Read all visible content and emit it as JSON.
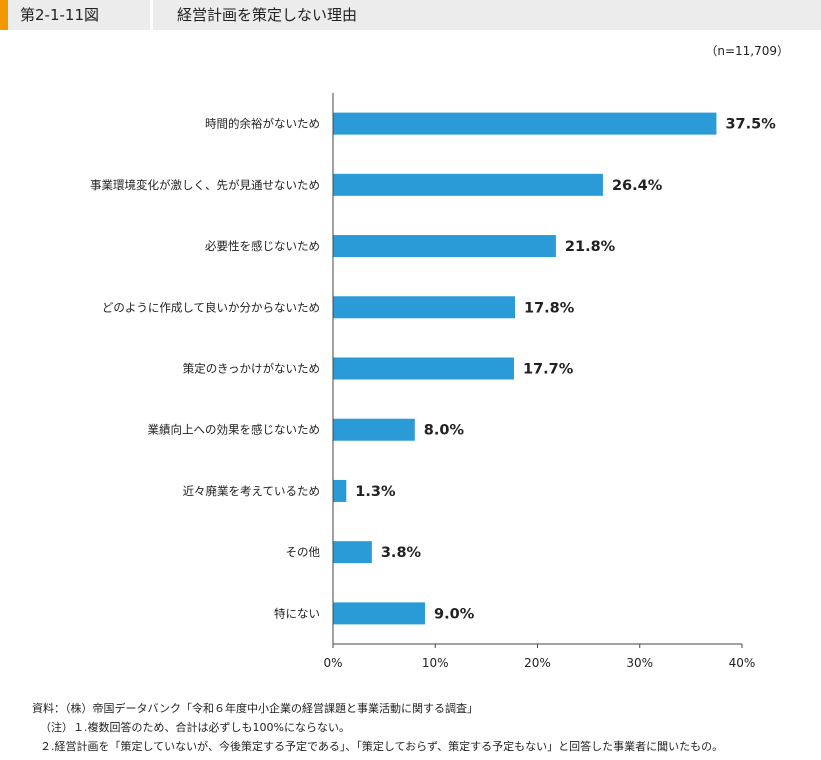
{
  "header": {
    "figure_number": "第2-1-11図",
    "title": "経営計画を策定しない理由"
  },
  "sample_size": "（n=11,709）",
  "chart_data": {
    "type": "bar",
    "orientation": "horizontal",
    "categories": [
      "時間的余裕がないため",
      "事業環境変化が激しく、先が見通せないため",
      "必要性を感じないため",
      "どのように作成して良いか分からないため",
      "策定のきっかけがないため",
      "業績向上への効果を感じないため",
      "近々廃業を考えているため",
      "その他",
      "特にない"
    ],
    "values": [
      37.5,
      26.4,
      21.8,
      17.8,
      17.7,
      8.0,
      1.3,
      3.8,
      9.0
    ],
    "value_labels": [
      "37.5%",
      "26.4%",
      "21.8%",
      "17.8%",
      "17.7%",
      "8.0%",
      "1.3%",
      "3.8%",
      "9.0%"
    ],
    "xlim": [
      0,
      40
    ],
    "xticks": [
      0,
      10,
      20,
      30,
      40
    ],
    "xtick_labels": [
      "0%",
      "10%",
      "20%",
      "30%",
      "40%"
    ],
    "bar_color": "#2a9bd6",
    "grid": false
  },
  "notes": {
    "source": "資料：（株）帝国データバンク「令和６年度中小企業の経営課題と事業活動に関する調査」",
    "note1": "（注）１.複数回答のため、合計は必ずしも100%にならない。",
    "note2": "２.経営計画を「策定していないが、今後策定する予定である」、「策定しておらず、策定する予定もない」と回答した事業者に聞いたもの。"
  }
}
